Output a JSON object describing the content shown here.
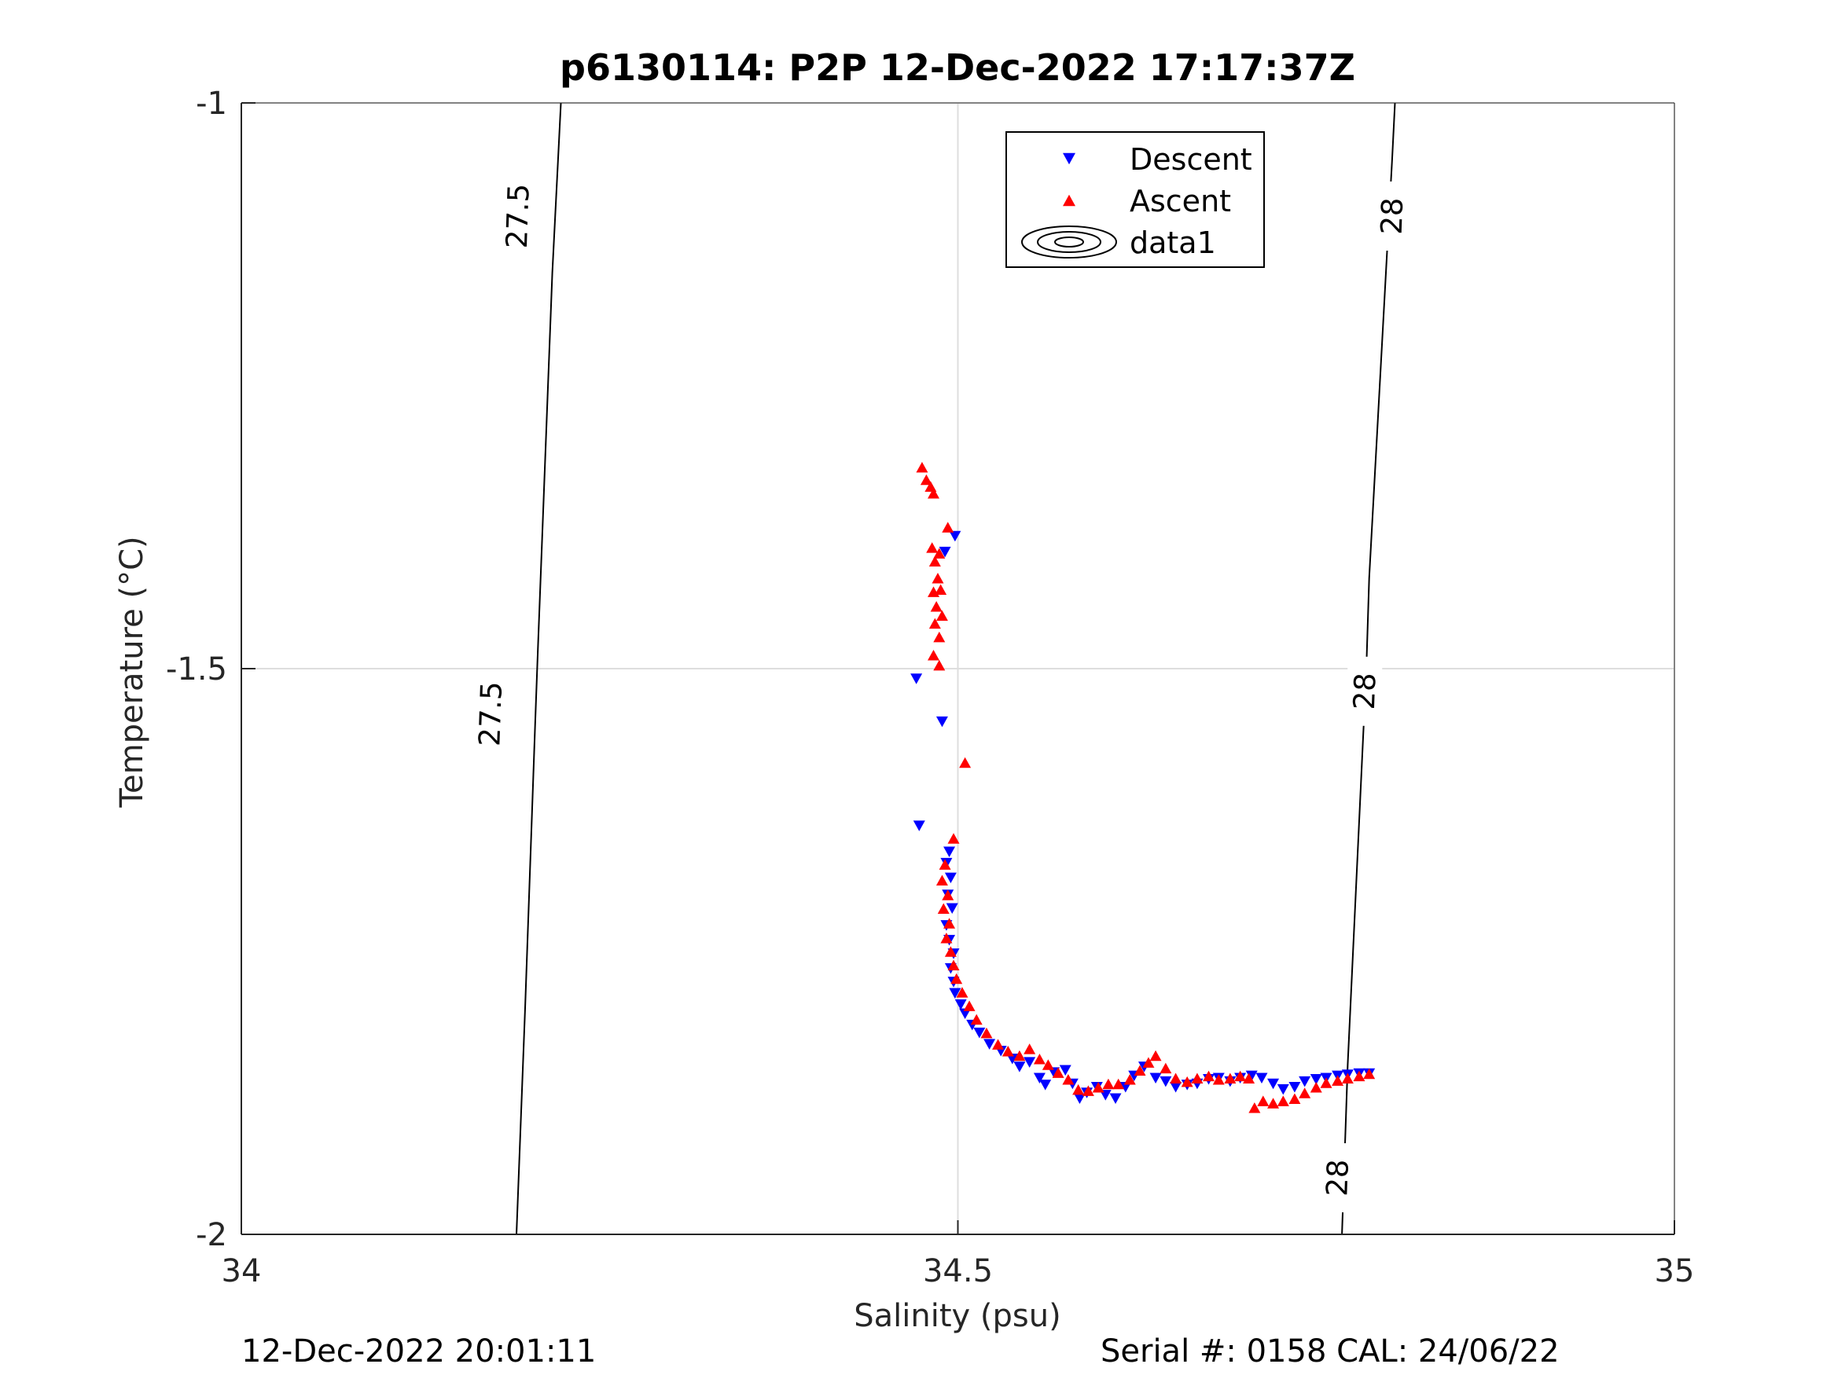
{
  "footer": {
    "left": "12-Dec-2022 20:01:11",
    "right": "Serial #: 0158  CAL: 24/06/22"
  },
  "colors": {
    "descent": "#0000ff",
    "ascent": "#ff0000",
    "grid": "#dedede",
    "axis": "#262626"
  },
  "chart_data": {
    "type": "scatter",
    "title": "p6130114: P2P 12-Dec-2022 17:17:37Z",
    "xlabel": "Salinity (psu)",
    "ylabel": "Temperature (°C)",
    "xlim": [
      34,
      35
    ],
    "ylim": [
      -2,
      -1
    ],
    "xticks": [
      34,
      34.5,
      35
    ],
    "xtick_labels": [
      "34",
      "34.5",
      "35"
    ],
    "yticks": [
      -2,
      -1.5,
      -1
    ],
    "ytick_labels": [
      "-2",
      "-1.5",
      "-1"
    ],
    "grid": true,
    "legend": {
      "placement": "top-center",
      "entries": [
        "Descent",
        "Ascent",
        "data1"
      ]
    },
    "contours": [
      {
        "label": "27.5",
        "points": [
          [
            34.192,
            -2.0
          ],
          [
            34.198,
            -1.8
          ],
          [
            34.205,
            -1.55
          ],
          [
            34.207,
            -1.48
          ],
          [
            34.217,
            -1.15
          ],
          [
            34.221,
            -1.05
          ],
          [
            34.223,
            -1.0
          ]
        ],
        "labels_at": [
          [
            34.174,
            -1.54
          ],
          [
            34.193,
            -1.1
          ]
        ]
      },
      {
        "label": "28",
        "points": [
          [
            34.768,
            -2.0
          ],
          [
            34.772,
            -1.85
          ],
          [
            34.785,
            -1.5
          ],
          [
            34.787,
            -1.42
          ],
          [
            34.803,
            -1.05
          ],
          [
            34.805,
            -1.0
          ]
        ],
        "labels_at": [
          [
            34.765,
            -1.95
          ],
          [
            34.784,
            -1.52
          ],
          [
            34.803,
            -1.1
          ]
        ]
      }
    ],
    "series": [
      {
        "name": "Descent",
        "marker": "triangle-down",
        "points": [
          [
            34.498,
            -1.383
          ],
          [
            34.491,
            -1.397
          ],
          [
            34.471,
            -1.509
          ],
          [
            34.489,
            -1.547
          ],
          [
            34.473,
            -1.639
          ],
          [
            34.494,
            -1.662
          ],
          [
            34.492,
            -1.672
          ],
          [
            34.495,
            -1.685
          ],
          [
            34.493,
            -1.7
          ],
          [
            34.496,
            -1.712
          ],
          [
            34.492,
            -1.727
          ],
          [
            34.494,
            -1.74
          ],
          [
            34.497,
            -1.752
          ],
          [
            34.495,
            -1.765
          ],
          [
            34.497,
            -1.777
          ],
          [
            34.498,
            -1.787
          ],
          [
            34.502,
            -1.797
          ],
          [
            34.505,
            -1.805
          ],
          [
            34.51,
            -1.815
          ],
          [
            34.515,
            -1.822
          ],
          [
            34.522,
            -1.832
          ],
          [
            34.53,
            -1.838
          ],
          [
            34.538,
            -1.845
          ],
          [
            34.543,
            -1.852
          ],
          [
            34.55,
            -1.848
          ],
          [
            34.557,
            -1.862
          ],
          [
            34.561,
            -1.868
          ],
          [
            34.567,
            -1.857
          ],
          [
            34.575,
            -1.855
          ],
          [
            34.58,
            -1.867
          ],
          [
            34.585,
            -1.88
          ],
          [
            34.59,
            -1.875
          ],
          [
            34.597,
            -1.87
          ],
          [
            34.603,
            -1.877
          ],
          [
            34.61,
            -1.88
          ],
          [
            34.617,
            -1.87
          ],
          [
            34.623,
            -1.86
          ],
          [
            34.63,
            -1.852
          ],
          [
            34.638,
            -1.862
          ],
          [
            34.645,
            -1.865
          ],
          [
            34.652,
            -1.87
          ],
          [
            34.66,
            -1.868
          ],
          [
            34.667,
            -1.867
          ],
          [
            34.675,
            -1.863
          ],
          [
            34.682,
            -1.862
          ],
          [
            34.69,
            -1.865
          ],
          [
            34.697,
            -1.862
          ],
          [
            34.705,
            -1.86
          ],
          [
            34.712,
            -1.862
          ],
          [
            34.72,
            -1.867
          ],
          [
            34.727,
            -1.872
          ],
          [
            34.735,
            -1.87
          ],
          [
            34.742,
            -1.865
          ],
          [
            34.75,
            -1.863
          ],
          [
            34.757,
            -1.862
          ],
          [
            34.765,
            -1.86
          ],
          [
            34.772,
            -1.859
          ],
          [
            34.78,
            -1.858
          ],
          [
            34.787,
            -1.858
          ]
        ]
      },
      {
        "name": "Ascent",
        "marker": "triangle-up",
        "points": [
          [
            34.475,
            -1.322
          ],
          [
            34.478,
            -1.333
          ],
          [
            34.481,
            -1.339
          ],
          [
            34.483,
            -1.345
          ],
          [
            34.493,
            -1.375
          ],
          [
            34.482,
            -1.393
          ],
          [
            34.487,
            -1.398
          ],
          [
            34.484,
            -1.405
          ],
          [
            34.486,
            -1.42
          ],
          [
            34.483,
            -1.432
          ],
          [
            34.488,
            -1.43
          ],
          [
            34.485,
            -1.445
          ],
          [
            34.489,
            -1.453
          ],
          [
            34.484,
            -1.46
          ],
          [
            34.487,
            -1.472
          ],
          [
            34.483,
            -1.488
          ],
          [
            34.487,
            -1.497
          ],
          [
            34.505,
            -1.583
          ],
          [
            34.497,
            -1.65
          ],
          [
            34.491,
            -1.673
          ],
          [
            34.489,
            -1.687
          ],
          [
            34.493,
            -1.7
          ],
          [
            34.49,
            -1.712
          ],
          [
            34.494,
            -1.725
          ],
          [
            34.492,
            -1.738
          ],
          [
            34.495,
            -1.75
          ],
          [
            34.497,
            -1.762
          ],
          [
            34.499,
            -1.774
          ],
          [
            34.503,
            -1.786
          ],
          [
            34.508,
            -1.798
          ],
          [
            34.513,
            -1.81
          ],
          [
            34.52,
            -1.822
          ],
          [
            34.528,
            -1.832
          ],
          [
            34.535,
            -1.838
          ],
          [
            34.543,
            -1.842
          ],
          [
            34.55,
            -1.836
          ],
          [
            34.557,
            -1.845
          ],
          [
            34.563,
            -1.85
          ],
          [
            34.57,
            -1.857
          ],
          [
            34.577,
            -1.863
          ],
          [
            34.584,
            -1.872
          ],
          [
            34.591,
            -1.873
          ],
          [
            34.598,
            -1.87
          ],
          [
            34.605,
            -1.867
          ],
          [
            34.612,
            -1.867
          ],
          [
            34.62,
            -1.863
          ],
          [
            34.627,
            -1.855
          ],
          [
            34.633,
            -1.848
          ],
          [
            34.638,
            -1.842
          ],
          [
            34.645,
            -1.853
          ],
          [
            34.652,
            -1.862
          ],
          [
            34.66,
            -1.865
          ],
          [
            34.667,
            -1.862
          ],
          [
            34.675,
            -1.86
          ],
          [
            34.682,
            -1.863
          ],
          [
            34.69,
            -1.862
          ],
          [
            34.697,
            -1.86
          ],
          [
            34.703,
            -1.862
          ],
          [
            34.707,
            -1.888
          ],
          [
            34.713,
            -1.882
          ],
          [
            34.72,
            -1.884
          ],
          [
            34.727,
            -1.882
          ],
          [
            34.735,
            -1.88
          ],
          [
            34.742,
            -1.875
          ],
          [
            34.75,
            -1.87
          ],
          [
            34.757,
            -1.866
          ],
          [
            34.765,
            -1.864
          ],
          [
            34.772,
            -1.862
          ],
          [
            34.78,
            -1.86
          ],
          [
            34.787,
            -1.858
          ]
        ]
      }
    ]
  }
}
